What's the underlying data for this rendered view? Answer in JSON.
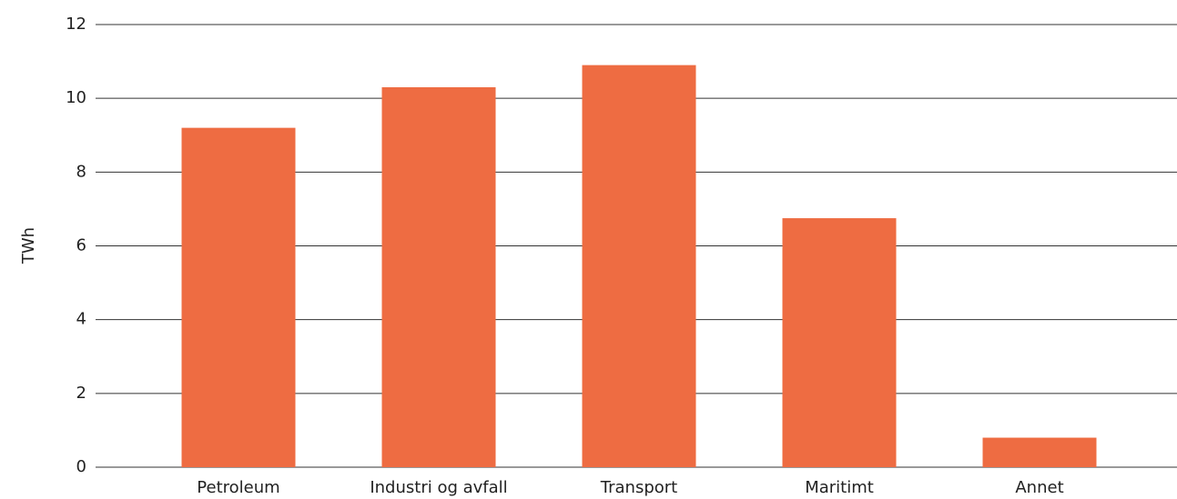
{
  "chart_data": {
    "type": "bar",
    "y_label": "TWh",
    "categories": [
      "Petroleum",
      "Industri og avfall",
      "Transport",
      "Maritimt",
      "Annet"
    ],
    "values": [
      9.2,
      10.3,
      10.9,
      6.75,
      0.8
    ],
    "color": "#ee6c42",
    "ylim": [
      0,
      12
    ],
    "yticks": [
      0,
      2,
      4,
      6,
      8,
      10,
      12
    ],
    "grid": true
  }
}
